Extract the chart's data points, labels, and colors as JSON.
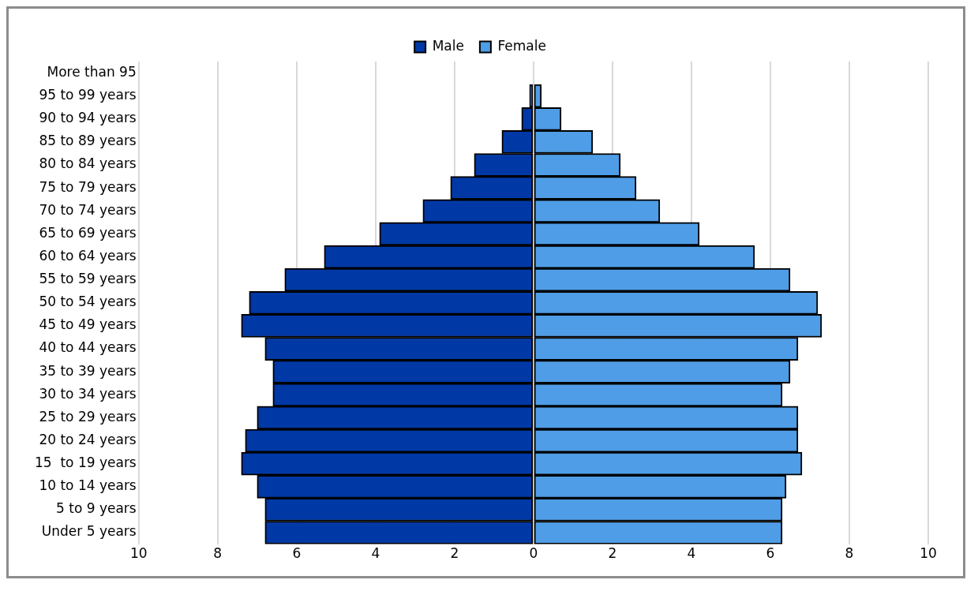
{
  "chart_data": {
    "type": "bar",
    "orientation": "horizontal",
    "stacked": true,
    "legend": "top",
    "grid": "x",
    "categories": [
      "More than 95",
      "95 to 99 years",
      "90 to 94 years",
      "85 to 89 years",
      "80 to 84 years",
      "75 to 79 years",
      "70 to 74 years",
      "65 to 69 years",
      "60 to 64 years",
      "55 to 59 years",
      "50 to 54 years",
      "45 to 49 years",
      "40 to 44 years",
      "35 to 39 years",
      "30 to 34 years",
      "25 to 29 years",
      "20 to 24 years",
      "15  to 19 years",
      "10 to 14 years",
      "5 to 9 years",
      "Under 5 years"
    ],
    "series": [
      {
        "name": "Male",
        "color": "#0039a6",
        "values": [
          null,
          -0.1,
          -0.3,
          -0.8,
          -1.5,
          -2.1,
          -2.8,
          -3.9,
          -5.3,
          -6.3,
          -7.2,
          -7.4,
          -6.8,
          -6.6,
          -6.6,
          -7.0,
          -7.3,
          -7.4,
          -7.0,
          -6.8,
          -6.8
        ]
      },
      {
        "name": "Female",
        "color": "#4f9de6",
        "values": [
          null,
          0.2,
          0.7,
          1.5,
          2.2,
          2.6,
          3.2,
          4.2,
          5.6,
          6.5,
          7.2,
          7.3,
          6.7,
          6.5,
          6.3,
          6.7,
          6.7,
          6.8,
          6.4,
          6.3,
          6.3
        ]
      }
    ],
    "xlim": [
      -10,
      10
    ],
    "xticks": [
      {
        "value": -10,
        "label": "10"
      },
      {
        "value": -8,
        "label": "8"
      },
      {
        "value": -6,
        "label": "6"
      },
      {
        "value": -4,
        "label": "4"
      },
      {
        "value": -2,
        "label": "2"
      },
      0,
      2,
      4,
      6,
      8,
      10
    ]
  }
}
